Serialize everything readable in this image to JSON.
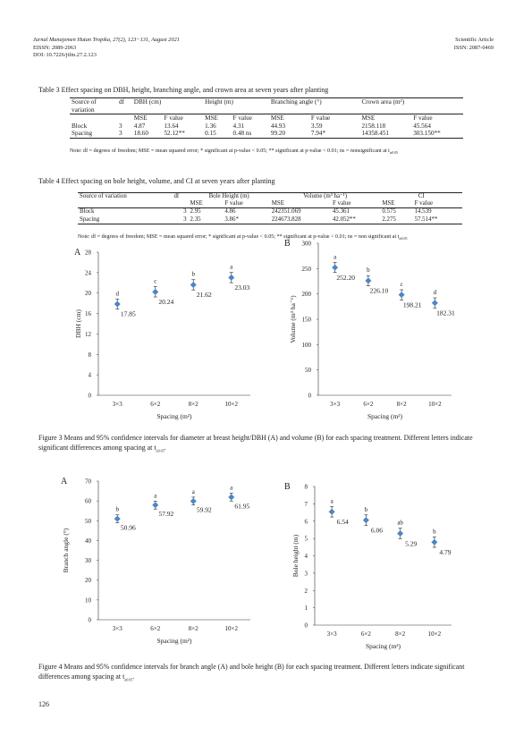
{
  "header": {
    "journal": "Jurnal Manajemen Hutan Tropika, 27(2), 123−131, August 2021",
    "eissn": "EISSN: 2089-2063",
    "doi": "DOI: 10.7226/jtfm.27.2.123",
    "article_type": "Scientific Article",
    "issn": "ISSN: 2087-0469"
  },
  "table3": {
    "caption": "Table 3  Effect spacing on DBH, height, branching angle, and crown area at seven years after planting",
    "h_source1": "Source of",
    "h_source2": "variation",
    "h_df": "df",
    "h_dbh": "DBH (cm)",
    "h_height": "Height (m)",
    "h_branch": "Branching angle (°)",
    "h_crown": "Crown area (m²)",
    "sub": [
      "MSE",
      "F value",
      "MSE",
      "F value",
      "MSE",
      "F value",
      "MSE",
      "F value"
    ],
    "rows": [
      [
        "Block",
        "3",
        "4.87",
        "13.64",
        "1.36",
        "4.31",
        "44.93",
        "3.59",
        "2158.118",
        "45.564"
      ],
      [
        "Spacing",
        "3",
        "18.60",
        "52.12**",
        "0.15",
        "0.48 ns",
        "99.20",
        "7.94*",
        "14358.451",
        "303.150**"
      ]
    ],
    "note": "Note: df = degrees of freedom; MSE = mean squared error; * significant at p-value < 0.05; ** significant at p-value < 0.01; ns = nonsignificant at t",
    "note_sub": "α0.05"
  },
  "table4": {
    "caption": "Table 4  Effect spacing on bole height, volume, and CI at seven years after planting",
    "h_source": "Source of variation",
    "h_df": "df",
    "h_bole": "Bole Height (m)",
    "h_volume": "Volume (m³ ha⁻¹)",
    "h_ci": "CI",
    "sub": [
      "MSE",
      "F value",
      "MSE",
      "F value",
      "MSE",
      "F value"
    ],
    "rows": [
      [
        "Block",
        "3",
        "2.95",
        "4.86",
        "242351.069",
        "45.361",
        "0.575",
        "14.539"
      ],
      [
        "Spacing",
        "3",
        "2.35",
        "3.86*",
        "224673.828",
        "42.052**",
        "2.275",
        "57.514**"
      ]
    ],
    "note": "Note: df = degrees of freedom; MSE = mean squared error; * significant at p-value < 0.05; ** significant at p-value < 0.01; ns = non significant at t",
    "note_sub": "α0.05"
  },
  "figure3": {
    "caption": "Figure 3  Means and 95% confidence intervals for diameter at breast height/DBH (A) and volume (B) for each spacing treatment. Different letters indicate significant differences among spacing at t",
    "caption_sub": "α0.05",
    "caption_end": "."
  },
  "figure4": {
    "caption": "Figure 4  Means and 95% confidence intervals for branch angle (A) and bole height (B) for each spacing treatment. Different letters indicate significant differences among spacing at t",
    "caption_sub": "α0.05",
    "caption_end": "."
  },
  "page_number": "126",
  "chart_data": [
    {
      "type": "scatter",
      "panel": "A",
      "categories": [
        "3×3",
        "6×2",
        "8×2",
        "10×2"
      ],
      "values": [
        17.85,
        20.24,
        21.62,
        23.03
      ],
      "value_labels": [
        "17.85",
        "20.24",
        "21.62",
        "23.03"
      ],
      "ci_half": [
        1.0,
        1.0,
        1.0,
        1.0
      ],
      "letters": [
        "d",
        "c",
        "b",
        "a"
      ],
      "xlabel": "Spacing (m²)",
      "ylabel": "DBH (cm)",
      "ylim": [
        0,
        28
      ],
      "yticks": [
        0,
        4,
        8,
        12,
        16,
        20,
        24,
        28
      ],
      "marker_color": "#4A86C5"
    },
    {
      "type": "scatter",
      "panel": "B",
      "categories": [
        "3×3",
        "6×2",
        "8×2",
        "10×2"
      ],
      "values": [
        252.2,
        226.1,
        198.21,
        182.31
      ],
      "value_labels": [
        "252.20",
        "226.10",
        "198.21",
        "182.31"
      ],
      "ci_half": [
        10,
        10,
        10,
        10
      ],
      "letters": [
        "a",
        "b",
        "c",
        "d"
      ],
      "xlabel": "Spacing (m²)",
      "ylabel": "Volume (m³ ha⁻¹)",
      "ylim": [
        0,
        300
      ],
      "yticks": [
        0,
        50,
        100,
        150,
        200,
        250,
        300
      ],
      "marker_color": "#4A86C5"
    },
    {
      "type": "scatter",
      "panel": "A",
      "categories": [
        "3×3",
        "6×2",
        "8×2",
        "10×2"
      ],
      "values": [
        50.96,
        57.92,
        59.92,
        61.95
      ],
      "value_labels": [
        "50.96",
        "57.92",
        "59.92",
        "61.95"
      ],
      "ci_half": [
        2.0,
        2.0,
        2.0,
        2.0
      ],
      "letters": [
        "b",
        "a",
        "a",
        "a"
      ],
      "xlabel": "Spacing (m²)",
      "ylabel": "Branch angle (°)",
      "ylim": [
        0,
        70
      ],
      "yticks": [
        0,
        10,
        20,
        30,
        40,
        50,
        60,
        70
      ],
      "marker_color": "#4A86C5"
    },
    {
      "type": "scatter",
      "panel": "B",
      "categories": [
        "3×3",
        "6×2",
        "8×2",
        "10×2"
      ],
      "values": [
        6.54,
        6.06,
        5.29,
        4.79
      ],
      "value_labels": [
        "6.54",
        "6.06",
        "5.29",
        "4.79"
      ],
      "ci_half": [
        0.3,
        0.3,
        0.3,
        0.3
      ],
      "letters": [
        "a",
        "b",
        "ab",
        "b"
      ],
      "xlabel": "Spacing (m²)",
      "ylabel": "Bole height (m)",
      "ylim": [
        0,
        8
      ],
      "yticks": [
        0,
        1,
        2,
        3,
        4,
        5,
        6,
        7,
        8
      ],
      "marker_color": "#4A86C5"
    }
  ]
}
